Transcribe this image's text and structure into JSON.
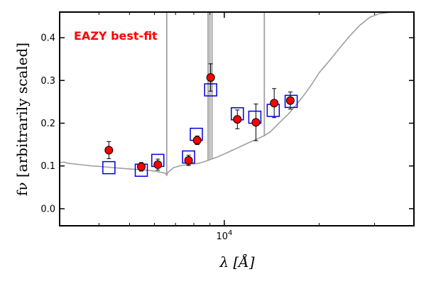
{
  "chart_data": {
    "type": "scatter",
    "title": "",
    "annotation": {
      "text": "EAZY best-fit",
      "color": "#ff0000"
    },
    "xlabel": "λ [Å]",
    "ylabel": "fν [arbitrarily scaled]",
    "x_scale": "log",
    "xlim": [
      3000,
      40000
    ],
    "ylim": [
      -0.04,
      0.46
    ],
    "grid": false,
    "y_ticks": [
      {
        "value": 0.0,
        "label": "0.0"
      },
      {
        "value": 0.1,
        "label": "0.1"
      },
      {
        "value": 0.2,
        "label": "0.2"
      },
      {
        "value": 0.3,
        "label": "0.3"
      },
      {
        "value": 0.4,
        "label": "0.4"
      }
    ],
    "x_major_ticks": [
      {
        "value": 10000,
        "label": "10^4"
      }
    ],
    "x_minor_ticks": [
      4000,
      5000,
      6000,
      7000,
      8000,
      9000,
      20000,
      30000
    ],
    "series": [
      {
        "name": "",
        "kind": "observed",
        "marker": "circle",
        "color": "#ff0000",
        "edge_color": "#000000",
        "points": [
          {
            "x": 4300,
            "y": 0.137,
            "yerr": 0.02
          },
          {
            "x": 5450,
            "y": 0.098,
            "yerr": 0.01
          },
          {
            "x": 6150,
            "y": 0.103,
            "yerr": 0.013
          },
          {
            "x": 7700,
            "y": 0.113,
            "yerr": 0.012
          },
          {
            "x": 8200,
            "y": 0.16,
            "yerr": 0.01
          },
          {
            "x": 9050,
            "y": 0.307,
            "yerr": 0.032
          },
          {
            "x": 11000,
            "y": 0.209,
            "yerr": 0.022
          },
          {
            "x": 12600,
            "y": 0.202,
            "yerr": 0.043
          },
          {
            "x": 14400,
            "y": 0.247,
            "yerr": 0.034
          },
          {
            "x": 16200,
            "y": 0.253,
            "yerr": 0.02
          }
        ]
      },
      {
        "name": "",
        "kind": "model-photometry",
        "marker": "square",
        "color": "#0000dd",
        "points": [
          {
            "x": 4300,
            "y": 0.096
          },
          {
            "x": 5450,
            "y": 0.09
          },
          {
            "x": 6150,
            "y": 0.113
          },
          {
            "x": 7700,
            "y": 0.121
          },
          {
            "x": 8150,
            "y": 0.174
          },
          {
            "x": 9050,
            "y": 0.278
          },
          {
            "x": 11000,
            "y": 0.222
          },
          {
            "x": 12500,
            "y": 0.214
          },
          {
            "x": 14300,
            "y": 0.23
          },
          {
            "x": 16300,
            "y": 0.251
          }
        ]
      },
      {
        "name": "",
        "kind": "template-spectrum",
        "color": "#a0a0a0",
        "points": [
          {
            "x": 3000,
            "y": 0.108
          },
          {
            "x": 3100,
            "y": 0.109
          },
          {
            "x": 3200,
            "y": 0.106
          },
          {
            "x": 3400,
            "y": 0.104
          },
          {
            "x": 3600,
            "y": 0.102
          },
          {
            "x": 3800,
            "y": 0.1
          },
          {
            "x": 4000,
            "y": 0.099
          },
          {
            "x": 4300,
            "y": 0.097
          },
          {
            "x": 4600,
            "y": 0.095
          },
          {
            "x": 5000,
            "y": 0.093
          },
          {
            "x": 5400,
            "y": 0.091
          },
          {
            "x": 5700,
            "y": 0.09
          },
          {
            "x": 6000,
            "y": 0.088
          },
          {
            "x": 6300,
            "y": 0.085
          },
          {
            "x": 6500,
            "y": 0.083
          },
          {
            "x": 6560,
            "y": 0.078
          },
          {
            "x": 6650,
            "y": 0.086
          },
          {
            "x": 6900,
            "y": 0.096
          },
          {
            "x": 7300,
            "y": 0.101
          },
          {
            "x": 7800,
            "y": 0.104
          },
          {
            "x": 8300,
            "y": 0.106
          },
          {
            "x": 8800,
            "y": 0.112
          },
          {
            "x": 9500,
            "y": 0.121
          },
          {
            "x": 10200,
            "y": 0.131
          },
          {
            "x": 11000,
            "y": 0.142
          },
          {
            "x": 12000,
            "y": 0.155
          },
          {
            "x": 12800,
            "y": 0.164
          },
          {
            "x": 13400,
            "y": 0.171
          },
          {
            "x": 14000,
            "y": 0.18
          },
          {
            "x": 15000,
            "y": 0.202
          },
          {
            "x": 16000,
            "y": 0.222
          },
          {
            "x": 17000,
            "y": 0.245
          },
          {
            "x": 18000,
            "y": 0.268
          },
          {
            "x": 19000,
            "y": 0.292
          },
          {
            "x": 20000,
            "y": 0.318
          },
          {
            "x": 21500,
            "y": 0.345
          },
          {
            "x": 23000,
            "y": 0.372
          },
          {
            "x": 25000,
            "y": 0.404
          },
          {
            "x": 27000,
            "y": 0.43
          },
          {
            "x": 29000,
            "y": 0.448
          },
          {
            "x": 31000,
            "y": 0.456
          },
          {
            "x": 34000,
            "y": 0.46
          }
        ],
        "emission_lines": [
          {
            "x": 6563,
            "base": 0.078
          },
          {
            "x": 8880,
            "base": 0.112
          },
          {
            "x": 9000,
            "base": 0.114
          },
          {
            "x": 9140,
            "base": 0.116
          },
          {
            "x": 13400,
            "base": 0.171
          }
        ]
      }
    ]
  }
}
